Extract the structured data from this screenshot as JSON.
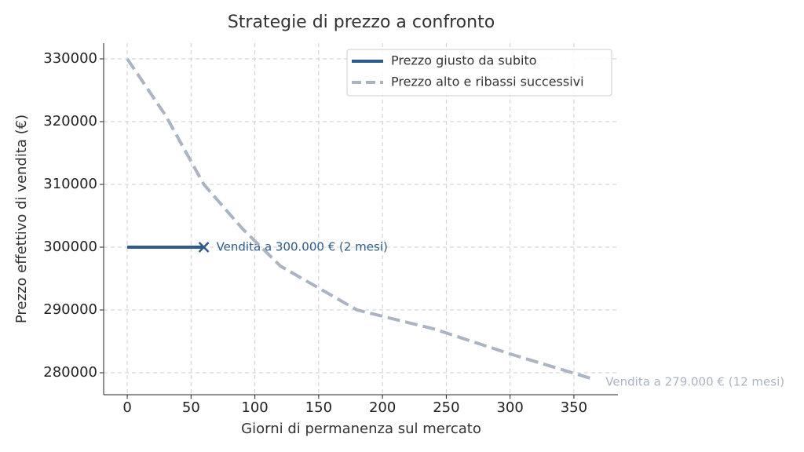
{
  "chart_data": {
    "type": "line",
    "title": "Strategie di prezzo a confronto",
    "xlabel": "Giorni di permanenza sul mercato",
    "ylabel": "Prezzo effettivo di vendita (€)",
    "xlim": [
      -18.5,
      384.5
    ],
    "ylim": [
      276500,
      332500
    ],
    "xticks": [
      0,
      50,
      100,
      150,
      200,
      250,
      300,
      350
    ],
    "yticks": [
      280000,
      290000,
      300000,
      310000,
      320000,
      330000
    ],
    "grid": true,
    "legend": "upper right",
    "series": [
      {
        "name": "Prezzo giusto da subito",
        "color": "#2e5b8a",
        "linestyle": "solid",
        "end_marker": "x",
        "x": [
          0,
          60
        ],
        "values": [
          300000,
          300000
        ],
        "annotation": "Vendita a 300.000 € (2 mesi)"
      },
      {
        "name": "Prezzo alto e ribassi successivi",
        "color": "#aab4c2",
        "linestyle": "dashed",
        "end_marker": "none",
        "x": [
          0,
          30,
          60,
          90,
          120,
          150,
          180,
          240,
          300,
          365
        ],
        "values": [
          330000,
          321000,
          310000,
          303000,
          297000,
          293500,
          290000,
          287000,
          283000,
          279000
        ],
        "annotation": "Vendita a 279.000 € (12 mesi)"
      }
    ]
  }
}
